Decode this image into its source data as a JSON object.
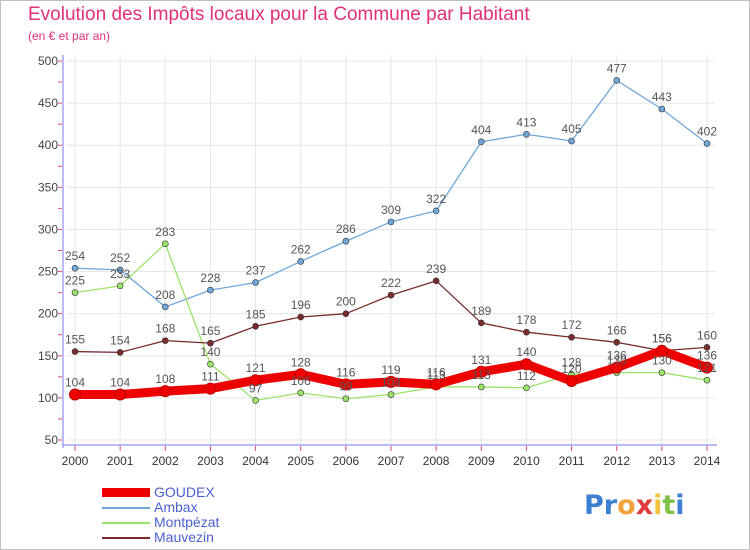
{
  "title": "Evolution des Impôts locaux pour la Commune par Habitant",
  "subtitle": "(en € et par an)",
  "colors": {
    "title": "#e0307a",
    "axis": "#7a7aea",
    "tick": "#e04a80",
    "grid": "#e6e6e6",
    "legend_text": "#4a5fd0"
  },
  "chart_data": {
    "type": "line",
    "x": [
      "2000",
      "2001",
      "2002",
      "2003",
      "2004",
      "2005",
      "2006",
      "2007",
      "2008",
      "2009",
      "2010",
      "2011",
      "2012",
      "2013",
      "2014"
    ],
    "yticks": [
      50,
      100,
      150,
      200,
      250,
      300,
      350,
      400,
      450,
      500
    ],
    "ylim": [
      50,
      500
    ],
    "grid": true,
    "legend_position": "bottom-left",
    "series": [
      {
        "name": "GOUDEX",
        "color": "#ee0000",
        "width": 9,
        "values": [
          104,
          104,
          108,
          111,
          121,
          128,
          116,
          119,
          116,
          131,
          140,
          120,
          136,
          156,
          136
        ],
        "labels": [
          "104",
          "104",
          "108",
          "111",
          "121",
          "128",
          "116",
          "119",
          "116",
          "131",
          "140",
          "120",
          "136",
          "156",
          "136"
        ]
      },
      {
        "name": "Ambax",
        "color": "#6fa7db",
        "width": 1.3,
        "values": [
          254,
          252,
          208,
          228,
          237,
          262,
          286,
          309,
          322,
          404,
          413,
          405,
          477,
          443,
          402
        ],
        "labels": [
          "254",
          "252",
          "208",
          "228",
          "237",
          "262",
          "286",
          "309",
          "322",
          "404",
          "413",
          "405",
          "477",
          "443",
          "402"
        ]
      },
      {
        "name": "Montpézat",
        "color": "#9ae36a",
        "width": 1.3,
        "values": [
          225,
          233,
          283,
          140,
          97,
          106,
          99,
          104,
          113,
          113,
          112,
          128,
          130,
          130,
          121
        ],
        "labels": [
          "225",
          "233",
          "283",
          "140",
          "97",
          "106",
          "99",
          "104",
          "113",
          "113",
          "112",
          "128",
          "130",
          "130",
          "121"
        ]
      },
      {
        "name": "Mauvezin",
        "color": "#7a2b2b",
        "width": 1.3,
        "values": [
          155,
          154,
          168,
          165,
          185,
          196,
          200,
          222,
          239,
          189,
          178,
          172,
          166,
          156,
          160
        ],
        "labels": [
          "155",
          "154",
          "168",
          "165",
          "185",
          "196",
          "200",
          "222",
          "239",
          "189",
          "178",
          "172",
          "166",
          "156",
          "160"
        ]
      }
    ]
  },
  "legend": [
    {
      "name": "GOUDEX",
      "color": "#ee0000",
      "thickness": 9
    },
    {
      "name": "Ambax",
      "color": "#6fa7db",
      "thickness": 2
    },
    {
      "name": "Montpézat",
      "color": "#9ae36a",
      "thickness": 2
    },
    {
      "name": "Mauvezin",
      "color": "#7a2b2b",
      "thickness": 2
    }
  ],
  "logo": {
    "letters": [
      "P",
      "r",
      "o",
      "x",
      "i",
      "t",
      "i"
    ],
    "colors": [
      "#3d7fd1",
      "#3d7fd1",
      "#f2a23c",
      "#e03c3c",
      "#f2c23c",
      "#7ec24a",
      "#3d7fd1"
    ]
  }
}
